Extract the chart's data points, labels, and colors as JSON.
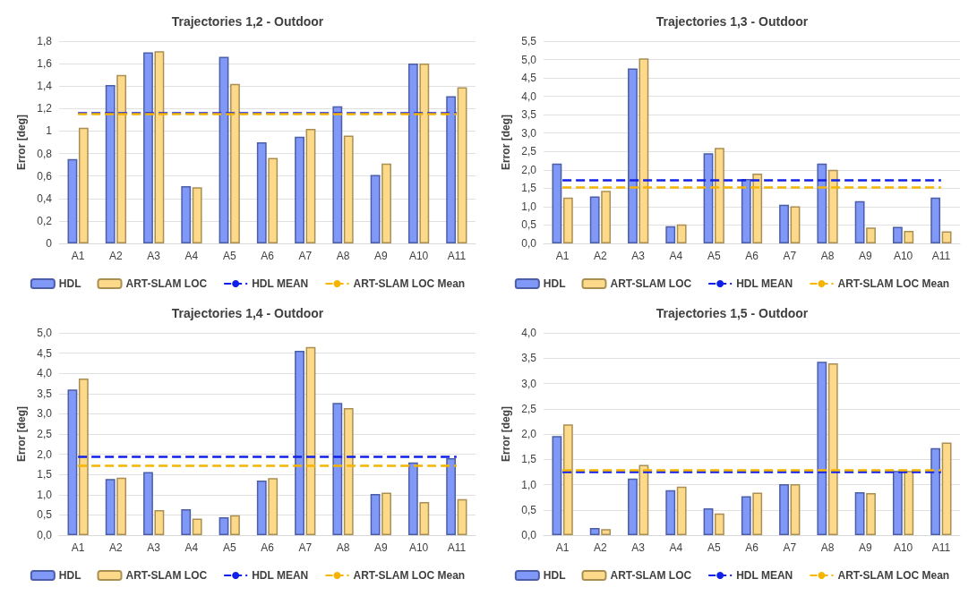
{
  "chart_data": [
    {
      "type": "bar",
      "title": "Trajectories 1,2 - Outdoor",
      "ylabel": "Error [deg]",
      "categories": [
        "A1",
        "A2",
        "A3",
        "A4",
        "A5",
        "A6",
        "A7",
        "A8",
        "A9",
        "A10",
        "A11"
      ],
      "series": [
        {
          "name": "HDL",
          "color": "#8098f7",
          "values": [
            0.75,
            1.41,
            1.7,
            0.51,
            1.66,
            0.9,
            0.95,
            1.22,
            0.61,
            1.6,
            1.31
          ]
        },
        {
          "name": "ART-SLAM LOC",
          "color": "#fdd98a",
          "values": [
            1.03,
            1.5,
            1.71,
            0.5,
            1.42,
            0.76,
            1.02,
            0.96,
            0.71,
            1.6,
            1.39
          ]
        }
      ],
      "ref_lines": [
        {
          "axis": "y",
          "value": 1.16,
          "label": "HDL MEAN",
          "color": "#1020e8",
          "line_style": "dashed"
        },
        {
          "axis": "y",
          "value": 1.15,
          "label": "ART-SLAM LOC Mean",
          "color": "#f5b400",
          "line_style": "dashed"
        }
      ],
      "ylim": [
        0,
        1.8
      ],
      "yticks": [
        0,
        {
          "value": 0.2,
          "label": "0,2"
        },
        {
          "value": 0.4,
          "label": "0,4"
        },
        {
          "value": 0.6,
          "label": "0,6"
        },
        {
          "value": 0.8,
          "label": "0,8"
        },
        1,
        {
          "value": 1.2,
          "label": "1,2"
        },
        {
          "value": 1.4,
          "label": "1,4"
        },
        {
          "value": 1.6,
          "label": "1,6"
        },
        {
          "value": 1.8,
          "label": "1,8"
        }
      ],
      "grid": "y",
      "legend": "bottom"
    },
    {
      "type": "bar",
      "title": "Trajectories 1,3 - Outdoor",
      "ylabel": "Error [deg]",
      "categories": [
        "A1",
        "A2",
        "A3",
        "A4",
        "A5",
        "A6",
        "A7",
        "A8",
        "A9",
        "A10",
        "A11"
      ],
      "series": [
        {
          "name": "HDL",
          "color": "#8098f7",
          "values": [
            2.17,
            1.28,
            4.76,
            0.47,
            2.45,
            1.75,
            1.05,
            2.17,
            1.15,
            0.45,
            1.25
          ]
        },
        {
          "name": "ART-SLAM LOC",
          "color": "#fdd98a",
          "values": [
            1.25,
            1.43,
            5.03,
            0.52,
            2.6,
            1.9,
            1.01,
            2.0,
            0.43,
            0.34,
            0.33
          ]
        }
      ],
      "ref_lines": [
        {
          "axis": "y",
          "value": 1.72,
          "label": "HDL MEAN",
          "color": "#1020e8",
          "line_style": "dashed"
        },
        {
          "axis": "y",
          "value": 1.53,
          "label": "ART-SLAM LOC Mean",
          "color": "#f5b400",
          "line_style": "dashed"
        }
      ],
      "ylim": [
        0,
        5.5
      ],
      "yticks": [
        {
          "value": 0,
          "label": "0,0"
        },
        {
          "value": 0.5,
          "label": "0,5"
        },
        {
          "value": 1,
          "label": "1,0"
        },
        {
          "value": 1.5,
          "label": "1,5"
        },
        {
          "value": 2,
          "label": "2,0"
        },
        {
          "value": 2.5,
          "label": "2,5"
        },
        {
          "value": 3,
          "label": "3,0"
        },
        {
          "value": 3.5,
          "label": "3,5"
        },
        {
          "value": 4,
          "label": "4,0"
        },
        {
          "value": 4.5,
          "label": "4,5"
        },
        {
          "value": 5,
          "label": "5,0"
        },
        {
          "value": 5.5,
          "label": "5,5"
        }
      ],
      "grid": "y",
      "legend": "bottom"
    },
    {
      "type": "bar",
      "title": "Trajectories 1,4 - Outdoor",
      "ylabel": "Error [deg]",
      "categories": [
        "A1",
        "A2",
        "A3",
        "A4",
        "A5",
        "A6",
        "A7",
        "A8",
        "A9",
        "A10",
        "A11"
      ],
      "series": [
        {
          "name": "HDL",
          "color": "#8098f7",
          "values": [
            3.6,
            1.39,
            1.56,
            0.64,
            0.44,
            1.35,
            4.56,
            3.27,
            1.02,
            1.8,
            1.9
          ]
        },
        {
          "name": "ART-SLAM LOC",
          "color": "#fdd98a",
          "values": [
            3.87,
            1.42,
            0.62,
            0.41,
            0.49,
            1.41,
            4.65,
            3.14,
            1.05,
            0.82,
            0.89
          ]
        }
      ],
      "ref_lines": [
        {
          "axis": "y",
          "value": 1.95,
          "label": "HDL MEAN",
          "color": "#1020e8",
          "line_style": "dashed"
        },
        {
          "axis": "y",
          "value": 1.71,
          "label": "ART-SLAM LOC Mean",
          "color": "#f5b400",
          "line_style": "dashed"
        }
      ],
      "ylim": [
        0,
        5
      ],
      "yticks": [
        {
          "value": 0,
          "label": "0,0"
        },
        {
          "value": 0.5,
          "label": "0,5"
        },
        {
          "value": 1,
          "label": "1,0"
        },
        {
          "value": 1.5,
          "label": "1,5"
        },
        {
          "value": 2,
          "label": "2,0"
        },
        {
          "value": 2.5,
          "label": "2,5"
        },
        {
          "value": 3,
          "label": "3,0"
        },
        {
          "value": 3.5,
          "label": "3,5"
        },
        {
          "value": 4,
          "label": "4,0"
        },
        {
          "value": 4.5,
          "label": "4,5"
        },
        {
          "value": 5,
          "label": "5,0"
        }
      ],
      "grid": "y",
      "legend": "bottom"
    },
    {
      "type": "bar",
      "title": "Trajectories 1,5 - Outdoor",
      "ylabel": "Error [deg]",
      "categories": [
        "A1",
        "A2",
        "A3",
        "A4",
        "A5",
        "A6",
        "A7",
        "A8",
        "A9",
        "A10",
        "A11"
      ],
      "series": [
        {
          "name": "HDL",
          "color": "#8098f7",
          "values": [
            1.96,
            0.14,
            1.12,
            0.89,
            0.53,
            0.77,
            1.01,
            3.43,
            0.85,
            1.27,
            1.72
          ]
        },
        {
          "name": "ART-SLAM LOC",
          "color": "#fdd98a",
          "values": [
            2.19,
            0.12,
            1.39,
            0.96,
            0.43,
            0.84,
            1.01,
            3.4,
            0.83,
            1.27,
            1.83
          ]
        }
      ],
      "ref_lines": [
        {
          "axis": "y",
          "value": 1.25,
          "label": "HDL MEAN",
          "color": "#1020e8",
          "line_style": "dashed"
        },
        {
          "axis": "y",
          "value": 1.29,
          "label": "ART-SLAM LOC Mean",
          "color": "#f5b400",
          "line_style": "dashed"
        }
      ],
      "ylim": [
        0,
        4
      ],
      "yticks": [
        {
          "value": 0,
          "label": "0,0"
        },
        {
          "value": 0.5,
          "label": "0,5"
        },
        {
          "value": 1,
          "label": "1,0"
        },
        {
          "value": 1.5,
          "label": "1,5"
        },
        {
          "value": 2,
          "label": "2,0"
        },
        {
          "value": 2.5,
          "label": "2,5"
        },
        {
          "value": 3,
          "label": "3,0"
        },
        {
          "value": 3.5,
          "label": "3,5"
        },
        {
          "value": 4,
          "label": "4,0"
        }
      ],
      "grid": "y",
      "legend": "bottom"
    }
  ]
}
